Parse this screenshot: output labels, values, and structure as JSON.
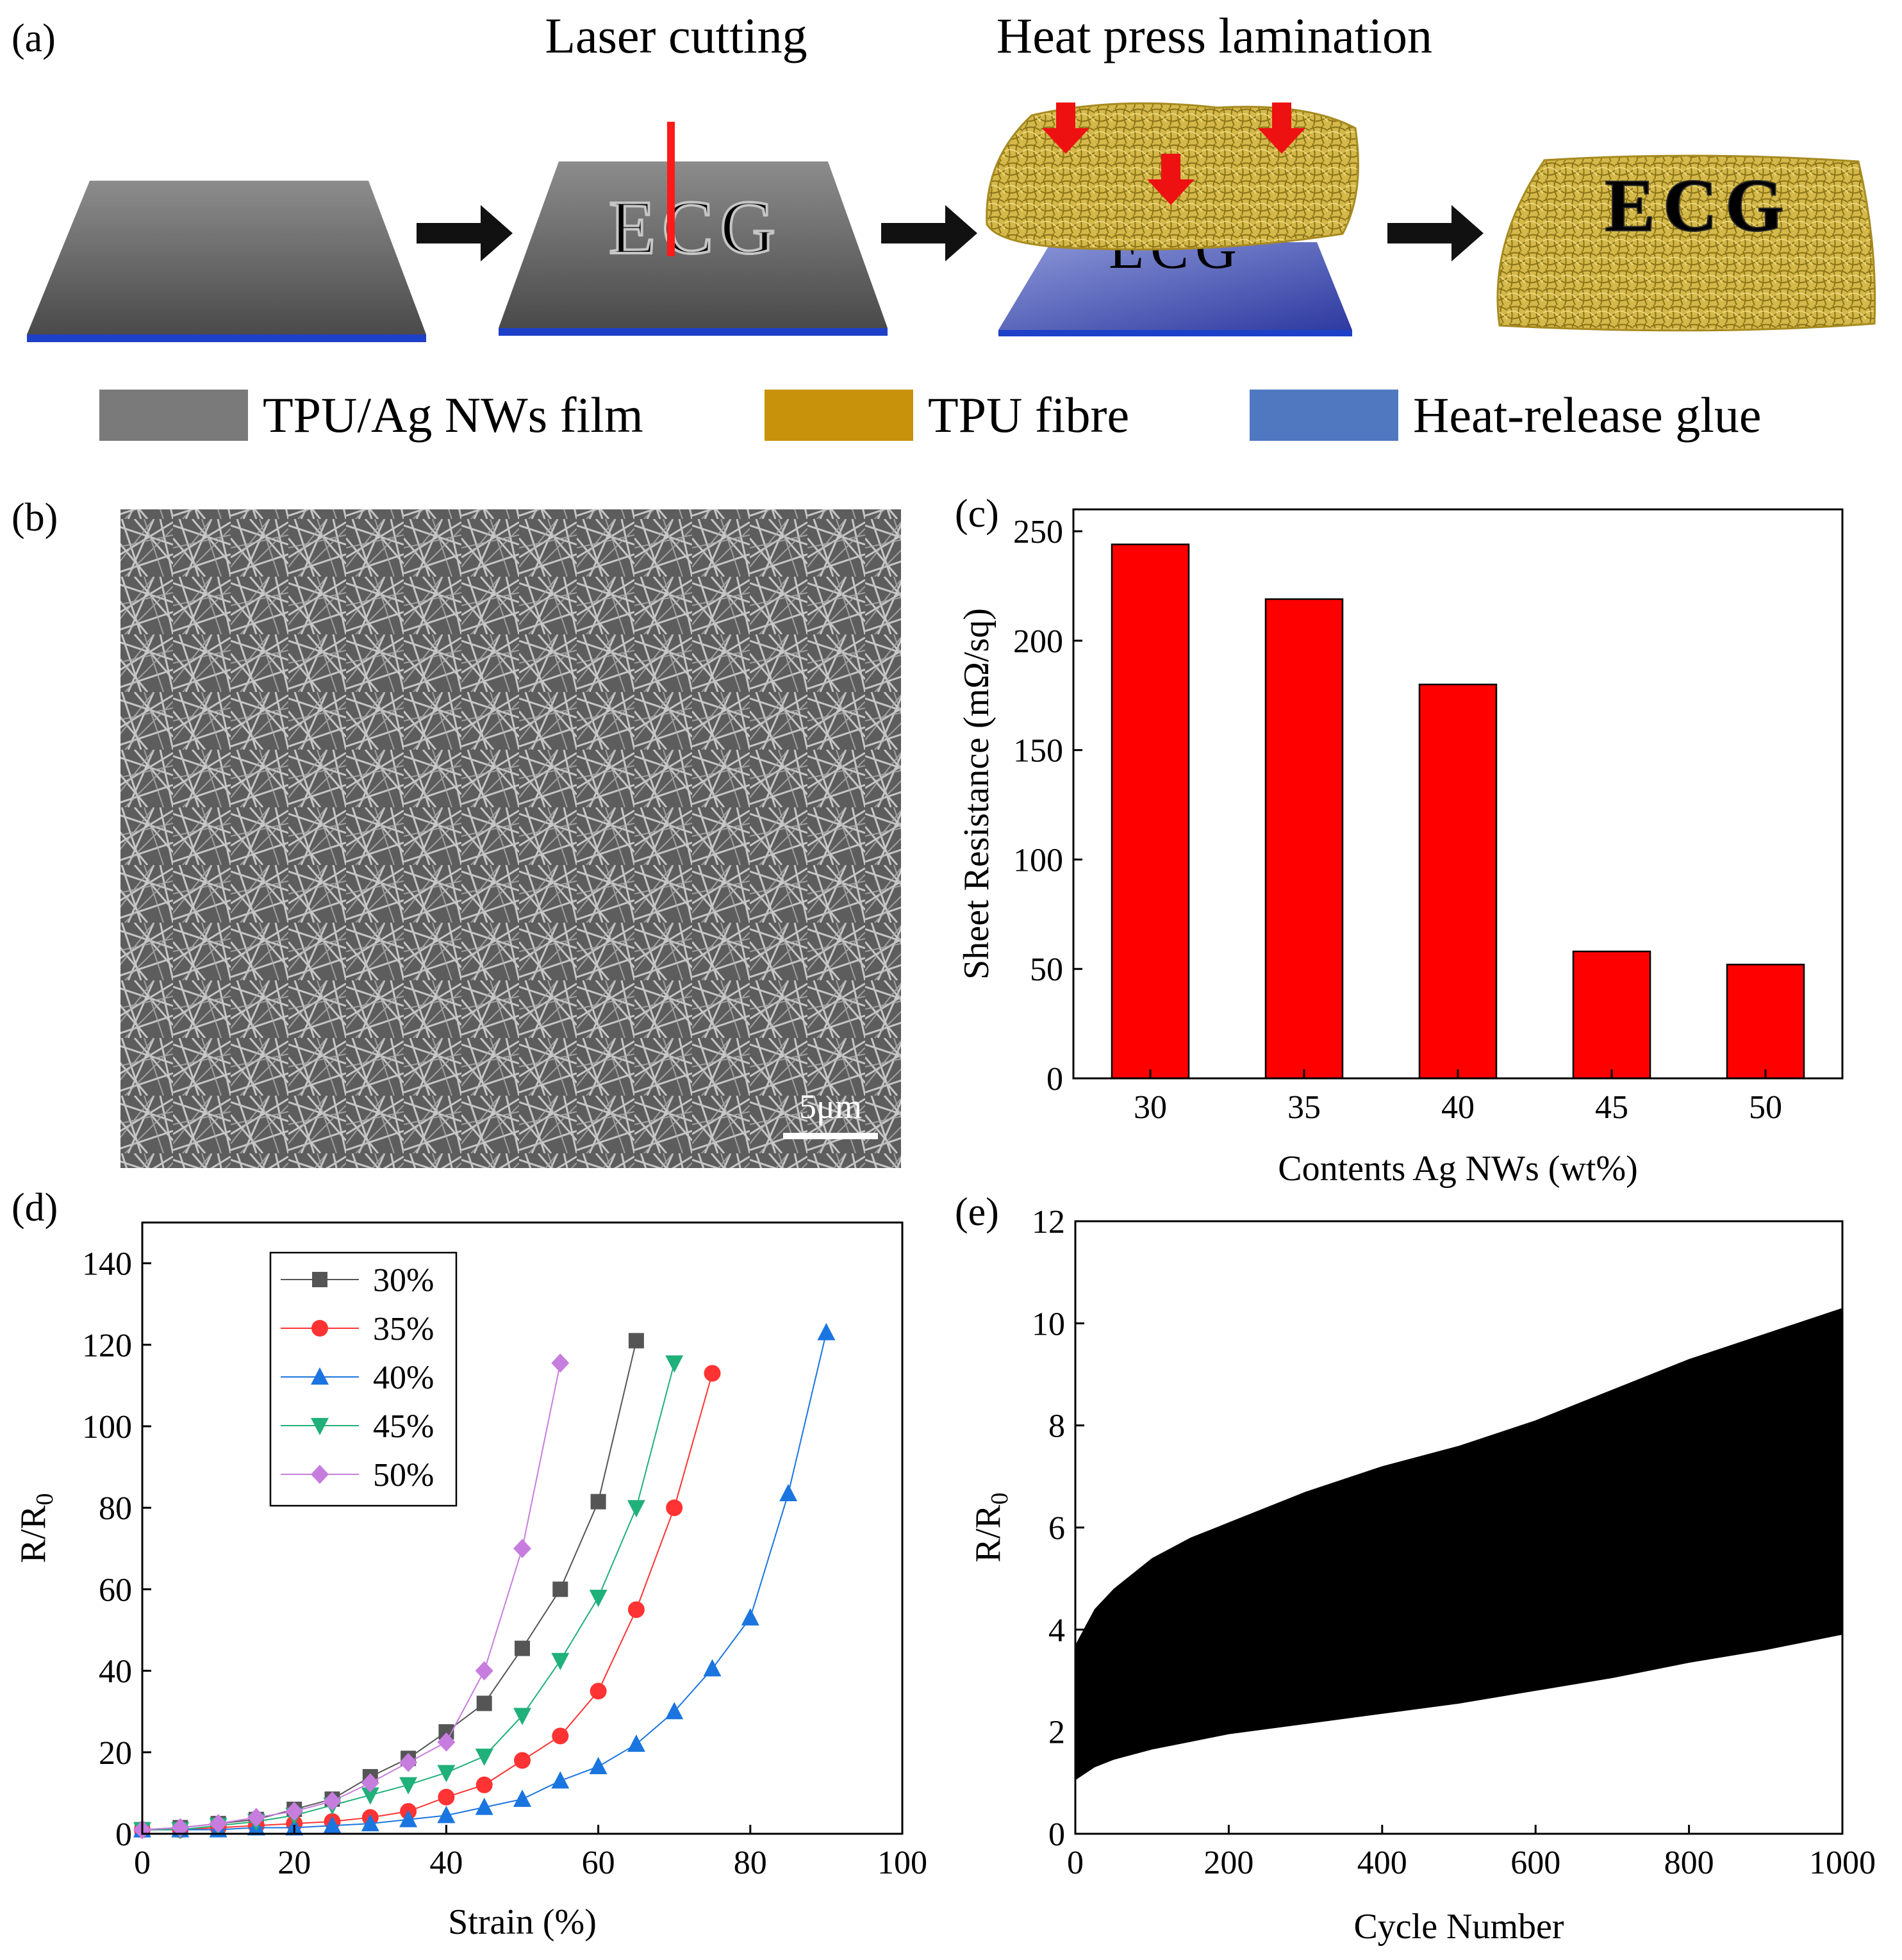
{
  "panel_labels": {
    "a": "(a)",
    "b": "(b)",
    "c": "(c)",
    "d": "(d)",
    "e": "(e)"
  },
  "process": {
    "step2_title": "Laser cutting",
    "step3_title": "Heat press lamination",
    "pattern_text": "ECG",
    "legend": [
      {
        "label": "TPU/Ag NWs film",
        "color": "#7a7a7a"
      },
      {
        "label": "TPU fibre",
        "color": "#c8920a"
      },
      {
        "label": "Heat-release glue",
        "color": "#5078c0"
      }
    ]
  },
  "sem": {
    "scale_bar_label": "5μm"
  },
  "chart_data": [
    {
      "id": "c",
      "type": "bar",
      "categories": [
        "30",
        "35",
        "40",
        "45",
        "50"
      ],
      "values": [
        244,
        219,
        180,
        58,
        52
      ],
      "xlabel": "Contents Ag NWs (wt%)",
      "ylabel": "Sheet Resistance (mΩ/sq)",
      "ylim": [
        0,
        260
      ],
      "yticks": [
        0,
        50,
        100,
        150,
        200,
        250
      ],
      "bar_color": "#ff0000"
    },
    {
      "id": "d",
      "type": "line",
      "xlabel": "Strain (%)",
      "ylabel": "R/R",
      "ylabel_sub": "0",
      "xlim": [
        0,
        100
      ],
      "ylim": [
        0,
        150
      ],
      "xticks": [
        0,
        20,
        40,
        60,
        80,
        100
      ],
      "yticks": [
        0,
        20,
        40,
        60,
        80,
        100,
        120,
        140
      ],
      "legend_position": "top-left",
      "series": [
        {
          "name": "30%",
          "color": "#555555",
          "marker": "square",
          "x": [
            0,
            5,
            10,
            15,
            20,
            25,
            30,
            35,
            40,
            45,
            50,
            55,
            60,
            65
          ],
          "y": [
            1,
            1.5,
            2.5,
            3.5,
            6,
            8.5,
            14,
            18.5,
            25,
            32,
            45.5,
            60,
            81.5,
            121
          ]
        },
        {
          "name": "35%",
          "color": "#ff3333",
          "marker": "circle",
          "x": [
            0,
            5,
            10,
            15,
            20,
            25,
            30,
            35,
            40,
            45,
            50,
            55,
            60,
            65,
            70,
            75
          ],
          "y": [
            1,
            1,
            1.5,
            2,
            2.5,
            3,
            4,
            5.5,
            9,
            12,
            18,
            24,
            35,
            55,
            80,
            113
          ]
        },
        {
          "name": "40%",
          "color": "#1a75e0",
          "marker": "triangle-up",
          "x": [
            0,
            5,
            10,
            15,
            20,
            25,
            30,
            35,
            40,
            45,
            50,
            55,
            60,
            65,
            70,
            75,
            80,
            85,
            90
          ],
          "y": [
            1,
            1,
            1,
            1.5,
            1.5,
            2,
            2.5,
            3.5,
            4.5,
            6.5,
            8.5,
            13,
            16.5,
            22,
            30,
            40.5,
            53,
            83.5,
            123
          ]
        },
        {
          "name": "45%",
          "color": "#20b07a",
          "marker": "triangle-down",
          "x": [
            0,
            5,
            10,
            15,
            20,
            25,
            30,
            35,
            40,
            45,
            50,
            55,
            60,
            65,
            70
          ],
          "y": [
            1,
            1,
            2,
            3,
            4.5,
            7,
            9.5,
            12,
            15,
            19,
            29,
            42.5,
            58,
            80,
            115.5
          ]
        },
        {
          "name": "50%",
          "color": "#c77dde",
          "marker": "diamond",
          "x": [
            0,
            5,
            10,
            15,
            20,
            25,
            30,
            35,
            40,
            45,
            50,
            55
          ],
          "y": [
            1,
            1.5,
            2.5,
            4,
            5.5,
            8,
            12.5,
            17.5,
            22.5,
            40,
            70,
            115.5
          ]
        }
      ]
    },
    {
      "id": "e",
      "type": "area",
      "xlabel": "Cycle Number",
      "ylabel": "R/R",
      "ylabel_sub": "0",
      "xlim": [
        0,
        1000
      ],
      "ylim": [
        0,
        12
      ],
      "xticks": [
        0,
        200,
        400,
        600,
        800,
        1000
      ],
      "yticks": [
        0,
        2,
        4,
        6,
        8,
        10,
        12
      ],
      "color": "#000000",
      "x": [
        0,
        25,
        50,
        100,
        150,
        200,
        300,
        400,
        500,
        600,
        700,
        800,
        900,
        1000
      ],
      "upper": [
        3.7,
        4.4,
        4.8,
        5.4,
        5.8,
        6.1,
        6.7,
        7.2,
        7.6,
        8.1,
        8.7,
        9.3,
        9.8,
        10.3
      ],
      "lower": [
        1.05,
        1.3,
        1.45,
        1.65,
        1.8,
        1.95,
        2.15,
        2.35,
        2.55,
        2.8,
        3.05,
        3.35,
        3.6,
        3.9
      ]
    }
  ]
}
